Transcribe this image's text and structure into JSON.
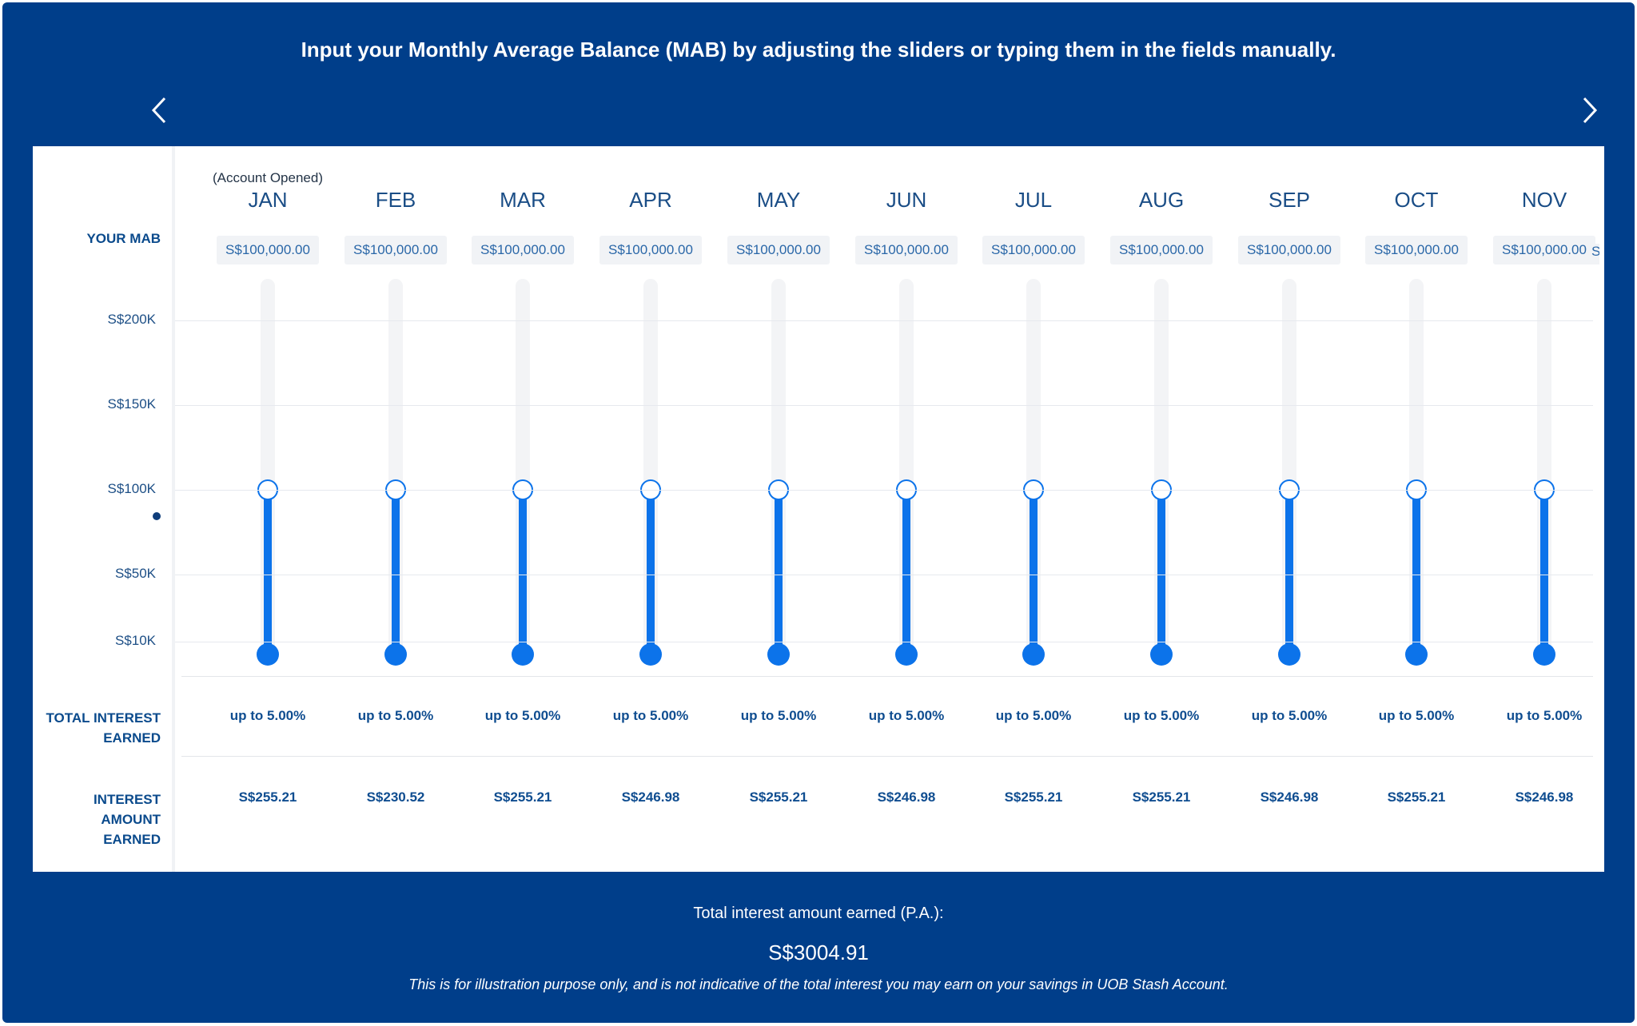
{
  "header": {
    "headline": "Input your Monthly Average Balance (MAB) by adjusting the sliders or typing them in the fields manually.",
    "prev_icon": "chevron-left-icon",
    "next_icon": "chevron-right-icon"
  },
  "labels": {
    "your_mab": "YOUR MAB",
    "total_interest_line1": "TOTAL INTEREST",
    "total_interest_line2": "EARNED",
    "interest_amount_line1": "INTEREST",
    "interest_amount_line2": "AMOUNT",
    "interest_amount_line3": "EARNED",
    "account_opened": "(Account Opened)"
  },
  "axis": {
    "ticks": [
      {
        "label": "S$200K",
        "value": 200000
      },
      {
        "label": "S$150K",
        "value": 150000
      },
      {
        "label": "S$100K",
        "value": 100000
      },
      {
        "label": "S$50K",
        "value": 50000
      },
      {
        "label": "S$10K",
        "value": 10000
      }
    ]
  },
  "slider_max": 200000,
  "months": [
    {
      "month": "JAN",
      "mab": "S$100,000.00",
      "mab_value": 100000,
      "rate": "up to 5.00%",
      "amount": "S$255.21"
    },
    {
      "month": "FEB",
      "mab": "S$100,000.00",
      "mab_value": 100000,
      "rate": "up to 5.00%",
      "amount": "S$230.52"
    },
    {
      "month": "MAR",
      "mab": "S$100,000.00",
      "mab_value": 100000,
      "rate": "up to 5.00%",
      "amount": "S$255.21"
    },
    {
      "month": "APR",
      "mab": "S$100,000.00",
      "mab_value": 100000,
      "rate": "up to 5.00%",
      "amount": "S$246.98"
    },
    {
      "month": "MAY",
      "mab": "S$100,000.00",
      "mab_value": 100000,
      "rate": "up to 5.00%",
      "amount": "S$255.21"
    },
    {
      "month": "JUN",
      "mab": "S$100,000.00",
      "mab_value": 100000,
      "rate": "up to 5.00%",
      "amount": "S$246.98"
    },
    {
      "month": "JUL",
      "mab": "S$100,000.00",
      "mab_value": 100000,
      "rate": "up to 5.00%",
      "amount": "S$255.21"
    },
    {
      "month": "AUG",
      "mab": "S$100,000.00",
      "mab_value": 100000,
      "rate": "up to 5.00%",
      "amount": "S$255.21"
    },
    {
      "month": "SEP",
      "mab": "S$100,000.00",
      "mab_value": 100000,
      "rate": "up to 5.00%",
      "amount": "S$246.98"
    },
    {
      "month": "OCT",
      "mab": "S$100,000.00",
      "mab_value": 100000,
      "rate": "up to 5.00%",
      "amount": "S$255.21"
    },
    {
      "month": "NOV",
      "mab": "S$100,000.00",
      "mab_value": 100000,
      "rate": "up to 5.00%",
      "amount": "S$246.98"
    }
  ],
  "partial_next_value": "S",
  "footer": {
    "total_label": "Total interest amount earned (P.A.):",
    "total_value": "S$3004.91",
    "disclaimer": "This is for illustration purpose only, and is not indicative of the total interest you may earn on your savings in UOB Stash Account."
  },
  "colors": {
    "panel_bg": "#003e8a",
    "slider_fill": "#0c73ea",
    "text_blue": "#0f4d90"
  }
}
